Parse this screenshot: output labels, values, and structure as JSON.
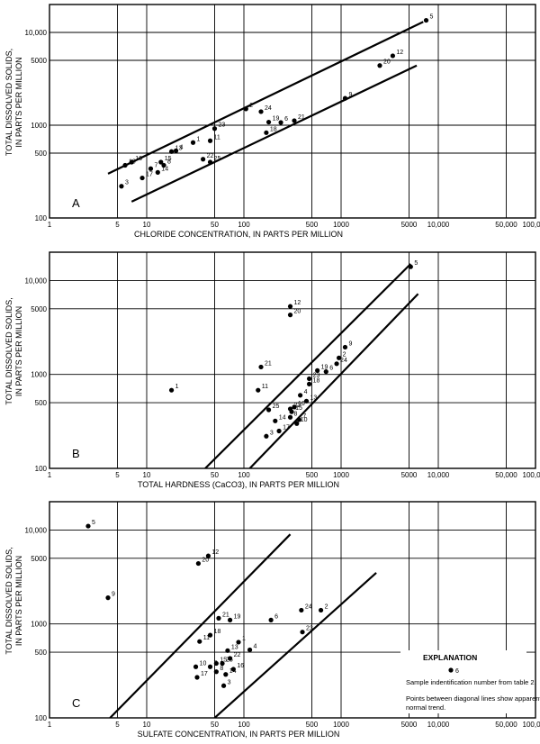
{
  "chart_data": [
    {
      "type": "scatter",
      "panel": "A",
      "xscale": "log",
      "yscale": "log",
      "xlim": [
        1,
        100000
      ],
      "ylim": [
        100,
        20000
      ],
      "xlabel": "CHLORIDE CONCENTRATION, IN PARTS PER MILLION",
      "ylabel": "TOTAL DISSOLVED SOLIDS, IN PARTS PER MILLION",
      "x_ticks": [
        "1",
        "5",
        "10",
        "50",
        "100",
        "500",
        "1000",
        "5000",
        "10,000",
        "50,000",
        "100,000"
      ],
      "y_ticks": [
        "100",
        "500",
        "1000",
        "5000",
        "10,000"
      ],
      "grid": true,
      "points": [
        {
          "label": "1",
          "x": 30,
          "y": 650
        },
        {
          "label": "2",
          "x": 105,
          "y": 1500
        },
        {
          "label": "3",
          "x": 5.5,
          "y": 220
        },
        {
          "label": "4",
          "x": 20,
          "y": 530
        },
        {
          "label": "5",
          "x": 7500,
          "y": 13500
        },
        {
          "label": "6",
          "x": 240,
          "y": 1070
        },
        {
          "label": "7",
          "x": 11,
          "y": 340
        },
        {
          "label": "8",
          "x": 15,
          "y": 370
        },
        {
          "label": "9",
          "x": 1100,
          "y": 1950
        },
        {
          "label": "10",
          "x": 6,
          "y": 370
        },
        {
          "label": "11",
          "x": 45,
          "y": 680
        },
        {
          "label": "12",
          "x": 3400,
          "y": 5600
        },
        {
          "label": "13",
          "x": 18,
          "y": 520
        },
        {
          "label": "14",
          "x": 13,
          "y": 310
        },
        {
          "label": "15",
          "x": 14,
          "y": 400
        },
        {
          "label": "16",
          "x": 7,
          "y": 400
        },
        {
          "label": "17",
          "x": 9,
          "y": 270
        },
        {
          "label": "18",
          "x": 170,
          "y": 830
        },
        {
          "label": "19",
          "x": 180,
          "y": 1080
        },
        {
          "label": "20",
          "x": 2500,
          "y": 4400
        },
        {
          "label": "21",
          "x": 330,
          "y": 1120
        },
        {
          "label": "22",
          "x": 38,
          "y": 430
        },
        {
          "label": "23",
          "x": 50,
          "y": 920
        },
        {
          "label": "24",
          "x": 150,
          "y": 1400
        },
        {
          "label": "25",
          "x": 45,
          "y": 400
        }
      ],
      "trend_lines": [
        {
          "x": [
            4,
            7000
          ],
          "y": [
            300,
            13000
          ]
        },
        {
          "x": [
            7,
            6000
          ],
          "y": [
            150,
            4400
          ]
        }
      ]
    },
    {
      "type": "scatter",
      "panel": "B",
      "xscale": "log",
      "yscale": "log",
      "xlim": [
        1,
        100000
      ],
      "ylim": [
        100,
        20000
      ],
      "xlabel": "TOTAL HARDNESS (CaCO3), IN PARTS PER MILLION",
      "ylabel": "TOTAL DISSOLVED SOLIDS, IN PARTS PER MILLION",
      "x_ticks": [
        "1",
        "5",
        "10",
        "50",
        "100",
        "500",
        "1000",
        "5000",
        "10,000",
        "50,000",
        "100,000"
      ],
      "y_ticks": [
        "100",
        "500",
        "1000",
        "5000",
        "10,000"
      ],
      "grid": true,
      "points": [
        {
          "label": "1",
          "x": 18,
          "y": 680
        },
        {
          "label": "2",
          "x": 950,
          "y": 1500
        },
        {
          "label": "3",
          "x": 170,
          "y": 220
        },
        {
          "label": "4",
          "x": 380,
          "y": 600
        },
        {
          "label": "5",
          "x": 5200,
          "y": 14000
        },
        {
          "label": "6",
          "x": 700,
          "y": 1070
        },
        {
          "label": "7",
          "x": 370,
          "y": 330
        },
        {
          "label": "8",
          "x": 300,
          "y": 350
        },
        {
          "label": "9",
          "x": 1100,
          "y": 1950
        },
        {
          "label": "10",
          "x": 350,
          "y": 300
        },
        {
          "label": "11",
          "x": 140,
          "y": 680
        },
        {
          "label": "12",
          "x": 300,
          "y": 5300
        },
        {
          "label": "13",
          "x": 440,
          "y": 520
        },
        {
          "label": "14",
          "x": 210,
          "y": 320
        },
        {
          "label": "15",
          "x": 310,
          "y": 400
        },
        {
          "label": "16",
          "x": 330,
          "y": 450
        },
        {
          "label": "17",
          "x": 230,
          "y": 250
        },
        {
          "label": "18",
          "x": 470,
          "y": 790
        },
        {
          "label": "19",
          "x": 570,
          "y": 1100
        },
        {
          "label": "20",
          "x": 300,
          "y": 4300
        },
        {
          "label": "21",
          "x": 150,
          "y": 1200
        },
        {
          "label": "22",
          "x": 300,
          "y": 430
        },
        {
          "label": "23",
          "x": 470,
          "y": 900
        },
        {
          "label": "24",
          "x": 900,
          "y": 1300
        },
        {
          "label": "25",
          "x": 180,
          "y": 420
        }
      ],
      "trend_lines": [
        {
          "x": [
            40,
            5200
          ],
          "y": [
            100,
            15000
          ]
        },
        {
          "x": [
            115,
            6200
          ],
          "y": [
            100,
            7200
          ]
        }
      ]
    },
    {
      "type": "scatter",
      "panel": "C",
      "xscale": "log",
      "yscale": "log",
      "xlim": [
        1,
        100000
      ],
      "ylim": [
        100,
        20000
      ],
      "xlabel": "SULFATE CONCENTRATION, IN PARTS PER MILLION",
      "ylabel": "TOTAL DISSOLVED SOLIDS, IN PARTS PER MILLION",
      "x_ticks": [
        "1",
        "5",
        "10",
        "50",
        "100",
        "500",
        "1000",
        "5000",
        "10,000",
        "50,000",
        "100,000"
      ],
      "y_ticks": [
        "100",
        "500",
        "1000",
        "5000",
        "10,000"
      ],
      "grid": true,
      "points": [
        {
          "label": "1",
          "x": 88,
          "y": 640
        },
        {
          "label": "2",
          "x": 620,
          "y": 1400
        },
        {
          "label": "3",
          "x": 62,
          "y": 220
        },
        {
          "label": "4",
          "x": 115,
          "y": 530
        },
        {
          "label": "5",
          "x": 2.5,
          "y": 11000
        },
        {
          "label": "6",
          "x": 190,
          "y": 1100
        },
        {
          "label": "7",
          "x": 45,
          "y": 350
        },
        {
          "label": "8",
          "x": 52,
          "y": 310
        },
        {
          "label": "9",
          "x": 4,
          "y": 1900
        },
        {
          "label": "10",
          "x": 32,
          "y": 350
        },
        {
          "label": "11",
          "x": 35,
          "y": 650
        },
        {
          "label": "12",
          "x": 43,
          "y": 5300
        },
        {
          "label": "13",
          "x": 68,
          "y": 520
        },
        {
          "label": "14",
          "x": 65,
          "y": 290
        },
        {
          "label": "15",
          "x": 52,
          "y": 380
        },
        {
          "label": "16",
          "x": 78,
          "y": 330
        },
        {
          "label": "17",
          "x": 33,
          "y": 270
        },
        {
          "label": "18",
          "x": 45,
          "y": 760
        },
        {
          "label": "19",
          "x": 72,
          "y": 1100
        },
        {
          "label": "20",
          "x": 34,
          "y": 4400
        },
        {
          "label": "21",
          "x": 55,
          "y": 1150
        },
        {
          "label": "22",
          "x": 72,
          "y": 430
        },
        {
          "label": "23",
          "x": 400,
          "y": 820
        },
        {
          "label": "24",
          "x": 390,
          "y": 1400
        },
        {
          "label": "25",
          "x": 60,
          "y": 380
        }
      ],
      "trend_lines": [
        {
          "x": [
            4.2,
            300
          ],
          "y": [
            100,
            9000
          ]
        },
        {
          "x": [
            50,
            2300
          ],
          "y": [
            100,
            3500
          ]
        }
      ],
      "explanation": {
        "title": "EXPLANATION",
        "symbol_label": "6",
        "line1": "Sample indentification number from table 2.",
        "line2": "Points between diagonal lines show apparent",
        "line3": "normal trend."
      }
    }
  ]
}
